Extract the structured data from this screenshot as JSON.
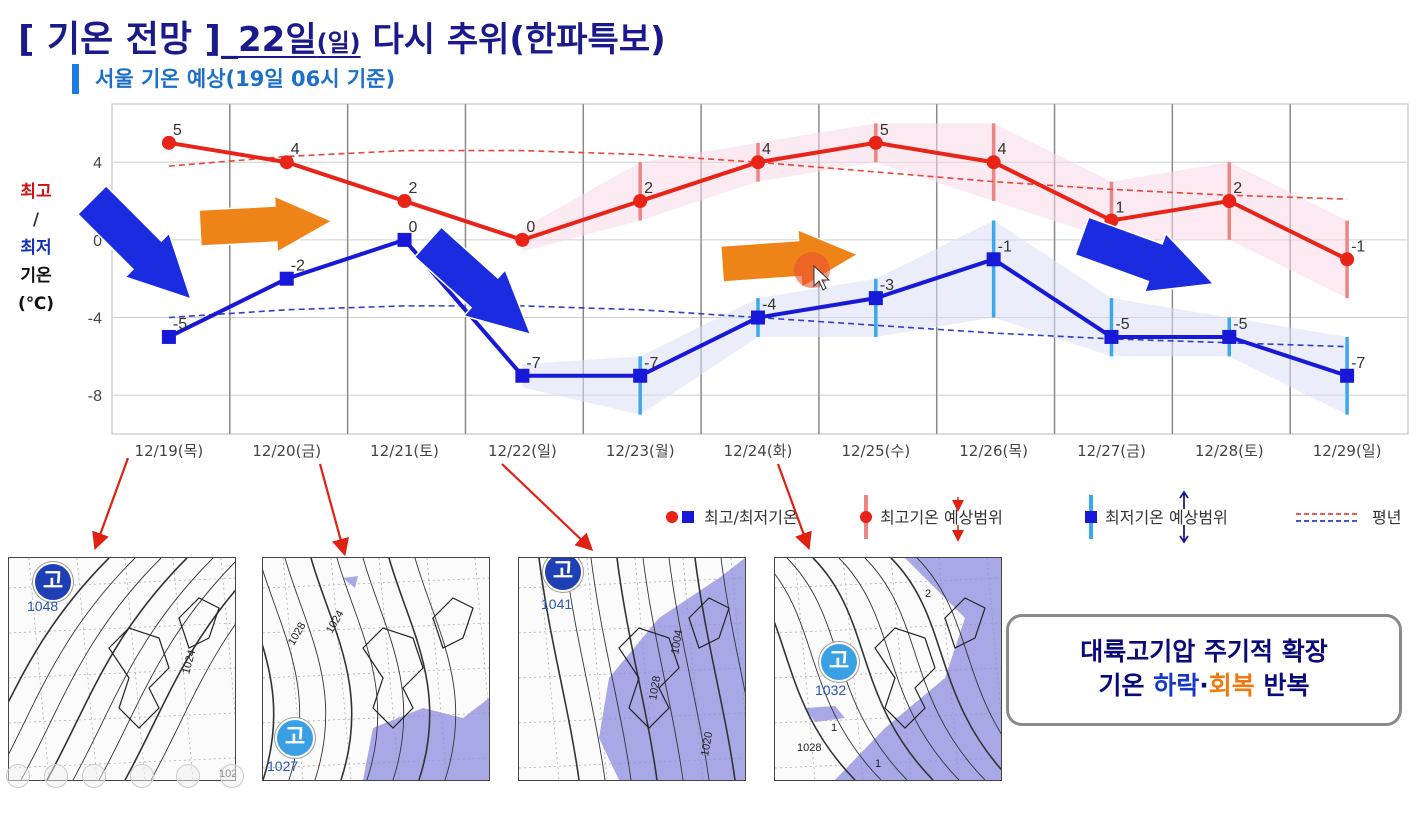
{
  "title": {
    "main": "[ 기온 전망 ]",
    "date": "_22일",
    "day": "(일)",
    "rest": " 다시 추위(한파특보)"
  },
  "subtitle": "서울 기온 예상(19일 06시 기준)",
  "ylabel": {
    "high": "최고",
    "slash": "/",
    "low": "최저",
    "word": "기온",
    "unit": "(℃)"
  },
  "colors": {
    "high": "#e82418",
    "low": "#1818d8",
    "title": "#1a1a8c",
    "subtitle": "#1e6fc8",
    "arrow_down": "#1a2be0",
    "arrow_up": "#ee8418"
  },
  "chart_data": {
    "type": "line",
    "title": "서울 기온 예상(19일 06시 기준)",
    "ylabel": "최고/최저 기온(℃)",
    "ylim": [
      -10,
      7
    ],
    "yticks": [
      4,
      0,
      -4,
      -8
    ],
    "categories": [
      "12/19(목)",
      "12/20(금)",
      "12/21(토)",
      "12/22(일)",
      "12/23(월)",
      "12/24(화)",
      "12/25(수)",
      "12/26(목)",
      "12/27(금)",
      "12/28(토)",
      "12/29(일)"
    ],
    "series": [
      {
        "name": "최고기온",
        "values": [
          5,
          4,
          2,
          0,
          2,
          4,
          5,
          4,
          1,
          2,
          -1
        ],
        "labels": [
          "5",
          "4",
          "2",
          "0",
          "2",
          "4",
          "5",
          "4",
          "1",
          "2",
          "-1"
        ],
        "range_low": [
          null,
          null,
          null,
          null,
          1,
          3,
          4,
          2,
          0,
          0,
          -3
        ],
        "range_high": [
          null,
          null,
          null,
          null,
          4,
          5,
          6,
          6,
          3,
          4,
          1
        ]
      },
      {
        "name": "최저기온",
        "values": [
          -5,
          -2,
          0,
          -7,
          -7,
          -4,
          -3,
          -1,
          -5,
          -5,
          -7
        ],
        "labels": [
          "-5",
          "-2",
          "0",
          "-7",
          "-7",
          "-4",
          "-3",
          "-1",
          "-5",
          "-5",
          "-7"
        ],
        "range_low": [
          null,
          null,
          null,
          null,
          -9,
          -5,
          -5,
          -4,
          -6,
          -6,
          -9
        ],
        "range_high": [
          null,
          null,
          null,
          null,
          -6,
          -3,
          -2,
          1,
          -3,
          -4,
          -5
        ]
      },
      {
        "name": "평년 최고",
        "values": [
          3.8,
          4.3,
          4.6,
          4.6,
          4.4,
          4.0,
          3.5,
          3.0,
          2.6,
          2.3,
          2.1
        ]
      },
      {
        "name": "평년 최저",
        "values": [
          -4.0,
          -3.6,
          -3.4,
          -3.4,
          -3.6,
          -4.0,
          -4.4,
          -4.8,
          -5.1,
          -5.3,
          -5.5
        ]
      }
    ],
    "legend": [
      "최고/최저기온",
      "최고기온 예상범위",
      "최저기온 예상범위",
      "평년"
    ]
  },
  "maps": [
    {
      "high_label": "고",
      "pressure": "1048",
      "iso": [
        "1024",
        "102"
      ]
    },
    {
      "high_label": "고",
      "pressure": "1027",
      "iso": [
        "1028",
        "1024"
      ]
    },
    {
      "high_label": "고",
      "pressure": "1041",
      "iso": [
        "1028",
        "1020",
        "1004"
      ]
    },
    {
      "high_label": "고",
      "pressure": "1032",
      "iso": [
        "1028",
        "1",
        "2",
        "1"
      ]
    }
  ],
  "summary": {
    "line1": "대륙고기압 주기적 확장",
    "line2_pre": "기온 ",
    "down": "하락",
    "sep": "·",
    "up": "회복",
    "line2_post": " 반복"
  }
}
